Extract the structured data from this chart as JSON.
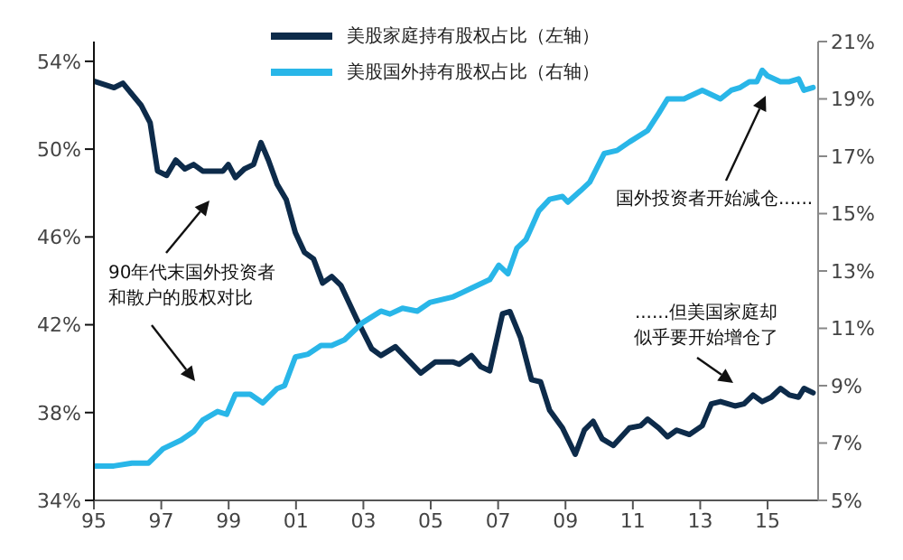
{
  "chart_data": {
    "type": "line",
    "xlim": [
      1995,
      2016.5
    ],
    "xticks": [
      {
        "value": 1995,
        "label": "95"
      },
      {
        "value": 1997,
        "label": "97"
      },
      {
        "value": 1999,
        "label": "99"
      },
      {
        "value": 2001,
        "label": "01"
      },
      {
        "value": 2003,
        "label": "03"
      },
      {
        "value": 2005,
        "label": "05"
      },
      {
        "value": 2007,
        "label": "07"
      },
      {
        "value": 2009,
        "label": "09"
      },
      {
        "value": 2011,
        "label": "11"
      },
      {
        "value": 2013,
        "label": "13"
      },
      {
        "value": 2015,
        "label": "15"
      }
    ],
    "ylim": [
      34,
      54.9
    ],
    "yticks": [
      {
        "value": 34,
        "label": "34%"
      },
      {
        "value": 38,
        "label": "38%"
      },
      {
        "value": 42,
        "label": "42%"
      },
      {
        "value": 46,
        "label": "46%"
      },
      {
        "value": 50,
        "label": "50%"
      },
      {
        "value": 54,
        "label": "54%"
      }
    ],
    "y2lim": [
      5,
      21
    ],
    "y2ticks": [
      {
        "value": 5,
        "label": "5%"
      },
      {
        "value": 7,
        "label": "7%"
      },
      {
        "value": 9,
        "label": "9%"
      },
      {
        "value": 11,
        "label": "11%"
      },
      {
        "value": 13,
        "label": "13%"
      },
      {
        "value": 15,
        "label": "15%"
      },
      {
        "value": 17,
        "label": "17%"
      },
      {
        "value": 19,
        "label": "19%"
      },
      {
        "value": 21,
        "label": "21%"
      }
    ],
    "grid": false,
    "legend": "top",
    "marker": "none",
    "line_style": "solid",
    "series": [
      {
        "name": "美股家庭持有股权占比（左轴）",
        "color": "#0d2b4a",
        "x": [
          1995.0,
          1995.6,
          1995.86,
          1996.4,
          1996.67,
          1996.89,
          1997.16,
          1997.43,
          1997.7,
          1997.96,
          1998.23,
          1998.83,
          1998.99,
          1999.2,
          1999.47,
          1999.74,
          1999.96,
          2000.18,
          2000.44,
          2000.71,
          2000.98,
          2001.25,
          2001.52,
          2001.79,
          2002.06,
          2002.33,
          2002.82,
          2003.25,
          2003.52,
          2003.95,
          2004.7,
          2005.13,
          2005.67,
          2005.84,
          2006.21,
          2006.48,
          2006.75,
          2007.13,
          2007.35,
          2007.67,
          2007.99,
          2008.26,
          2008.53,
          2008.91,
          2009.29,
          2009.56,
          2009.82,
          2010.09,
          2010.42,
          2010.9,
          2011.23,
          2011.44,
          2011.77,
          2012.03,
          2012.3,
          2012.68,
          2013.06,
          2013.33,
          2013.6,
          2014.03,
          2014.3,
          2014.57,
          2014.84,
          2015.11,
          2015.38,
          2015.65,
          2015.92,
          2016.08,
          2016.35
        ],
        "values": [
          53.1,
          52.8,
          53.0,
          52.0,
          51.2,
          49.0,
          48.8,
          49.5,
          49.1,
          49.3,
          49.0,
          49.0,
          49.3,
          48.7,
          49.1,
          49.3,
          50.3,
          49.5,
          48.4,
          47.7,
          46.2,
          45.3,
          45.0,
          43.9,
          44.2,
          43.8,
          42.2,
          40.9,
          40.6,
          41.0,
          39.8,
          40.3,
          40.3,
          40.2,
          40.6,
          40.1,
          39.9,
          42.5,
          42.6,
          41.4,
          39.5,
          39.4,
          38.1,
          37.3,
          36.1,
          37.2,
          37.6,
          36.8,
          36.5,
          37.3,
          37.4,
          37.7,
          37.3,
          36.9,
          37.2,
          37.0,
          37.4,
          38.4,
          38.5,
          38.3,
          38.4,
          38.8,
          38.5,
          38.7,
          39.1,
          38.8,
          38.7,
          39.1,
          38.9
        ]
      },
      {
        "name": "美股国外持有股权占比（右轴）",
        "color": "#29b6e8",
        "axis": "y2",
        "x": [
          1995.0,
          1995.59,
          1996.13,
          1996.62,
          1997.05,
          1997.59,
          1997.96,
          1998.23,
          1998.67,
          1998.94,
          1999.2,
          1999.64,
          2000.01,
          2000.44,
          2000.66,
          2000.98,
          2001.36,
          2001.74,
          2002.06,
          2002.44,
          2002.98,
          2003.52,
          2003.79,
          2004.16,
          2004.6,
          2004.97,
          2005.67,
          2006.21,
          2006.75,
          2007.02,
          2007.29,
          2007.56,
          2007.83,
          2008.21,
          2008.53,
          2008.91,
          2009.07,
          2009.45,
          2009.72,
          2010.15,
          2010.53,
          2010.9,
          2011.44,
          2011.77,
          2012.03,
          2012.52,
          2013.06,
          2013.6,
          2013.92,
          2014.19,
          2014.46,
          2014.68,
          2014.84,
          2015.0,
          2015.38,
          2015.65,
          2015.92,
          2016.08,
          2016.35
        ],
        "values": [
          6.2,
          6.2,
          6.3,
          6.3,
          6.8,
          7.1,
          7.4,
          7.8,
          8.1,
          8.0,
          8.7,
          8.7,
          8.4,
          8.9,
          9.0,
          10.0,
          10.1,
          10.4,
          10.4,
          10.6,
          11.2,
          11.6,
          11.5,
          11.7,
          11.6,
          11.9,
          12.1,
          12.4,
          12.7,
          13.2,
          12.9,
          13.8,
          14.1,
          15.1,
          15.5,
          15.6,
          15.4,
          15.8,
          16.1,
          17.1,
          17.2,
          17.5,
          17.9,
          18.5,
          19.0,
          19.0,
          19.3,
          19.0,
          19.3,
          19.4,
          19.6,
          19.6,
          20.0,
          19.8,
          19.6,
          19.6,
          19.7,
          19.3,
          19.4
        ]
      }
    ],
    "annotations": [
      "90年代末国外投资者和散户的股权对比",
      "国外投资者开始减仓......",
      "......但美国家庭却似乎要开始增仓了"
    ]
  }
}
